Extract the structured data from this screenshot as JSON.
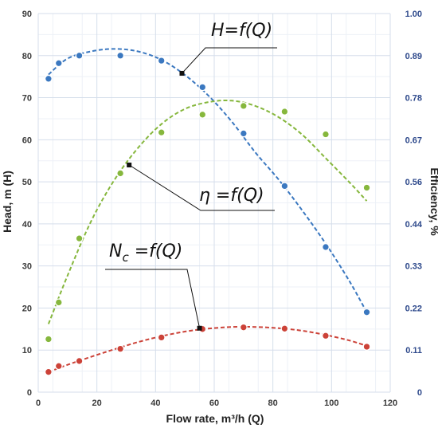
{
  "chart_data": {
    "type": "scatter",
    "x_label": "Flow rate, m³/h (Q)",
    "y_left_label": "Head, m (H)",
    "y_right_label": "Efficiency, %",
    "xlim": [
      0,
      120
    ],
    "ylim_left": [
      0,
      90
    ],
    "ylim_right": [
      0,
      1.0
    ],
    "x_ticks": [
      "0",
      "20",
      "40",
      "60",
      "80",
      "100",
      "120"
    ],
    "y_left_ticks": [
      "0",
      "10",
      "20",
      "30",
      "40",
      "50",
      "60",
      "70",
      "80",
      "90"
    ],
    "y_right_ticks": [
      "0",
      "0.11",
      "0.22",
      "0.33",
      "0.44",
      "0.56",
      "0.67",
      "0.78",
      "0.89",
      "1.00"
    ],
    "grid": true,
    "series": [
      {
        "axis": "left",
        "color": "#3b78c0",
        "x": [
          3.5,
          7,
          14,
          28,
          42,
          56,
          70,
          84,
          98,
          112
        ],
        "y": [
          74.5,
          78.2,
          80.0,
          80.0,
          78.8,
          72.5,
          61.5,
          49.0,
          34.5,
          19.0
        ],
        "trend": [
          [
            3.5,
            75.5
          ],
          [
            10,
            79.3
          ],
          [
            18,
            81.0
          ],
          [
            26,
            81.6
          ],
          [
            34,
            81.0
          ],
          [
            42,
            79.0
          ],
          [
            50,
            75.4
          ],
          [
            58,
            70.5
          ],
          [
            66,
            64.3
          ],
          [
            74,
            57.0
          ],
          [
            82,
            50.5
          ],
          [
            90,
            43.2
          ],
          [
            98,
            35.3
          ],
          [
            106,
            26.5
          ],
          [
            112,
            19.0
          ]
        ]
      },
      {
        "axis": "right",
        "color": "#86b73d",
        "x": [
          3.5,
          7,
          14,
          28,
          42,
          56,
          70,
          84,
          98,
          112
        ],
        "y": [
          0.14,
          0.237,
          0.406,
          0.578,
          0.686,
          0.733,
          0.756,
          0.741,
          0.681,
          0.54
        ],
        "trend": [
          [
            3.5,
            0.18
          ],
          [
            10,
            0.308
          ],
          [
            18,
            0.451
          ],
          [
            26,
            0.561
          ],
          [
            34,
            0.645
          ],
          [
            42,
            0.708
          ],
          [
            50,
            0.748
          ],
          [
            58,
            0.766
          ],
          [
            66,
            0.77
          ],
          [
            74,
            0.756
          ],
          [
            82,
            0.726
          ],
          [
            90,
            0.68
          ],
          [
            98,
            0.618
          ],
          [
            106,
            0.555
          ],
          [
            112,
            0.505
          ]
        ]
      },
      {
        "axis": "left",
        "color": "#cc4238",
        "x": [
          3.5,
          7,
          14,
          28,
          42,
          56,
          70,
          84,
          98,
          112
        ],
        "y": [
          4.8,
          6.2,
          7.4,
          10.3,
          13.0,
          15.0,
          15.4,
          15.1,
          13.4,
          10.8
        ],
        "trend": [
          [
            3.5,
            4.8
          ],
          [
            10,
            6.5
          ],
          [
            18,
            8.4
          ],
          [
            26,
            10.2
          ],
          [
            34,
            11.9
          ],
          [
            42,
            13.3
          ],
          [
            50,
            14.4
          ],
          [
            58,
            15.1
          ],
          [
            66,
            15.5
          ],
          [
            74,
            15.5
          ],
          [
            82,
            15.2
          ],
          [
            90,
            14.6
          ],
          [
            98,
            13.6
          ],
          [
            106,
            12.3
          ],
          [
            112,
            11.0
          ]
        ]
      }
    ],
    "annotations": [
      {
        "text": "H=f(Q)",
        "series": 0,
        "marker": [
          49,
          75.8
        ]
      },
      {
        "text": "η =f(Q)",
        "series": 1,
        "marker": [
          31,
          0.6
        ]
      },
      {
        "text": "N",
        "subscript": "c",
        "rest": " =f(Q)",
        "series": 2,
        "marker": [
          55,
          15.2
        ]
      }
    ]
  }
}
